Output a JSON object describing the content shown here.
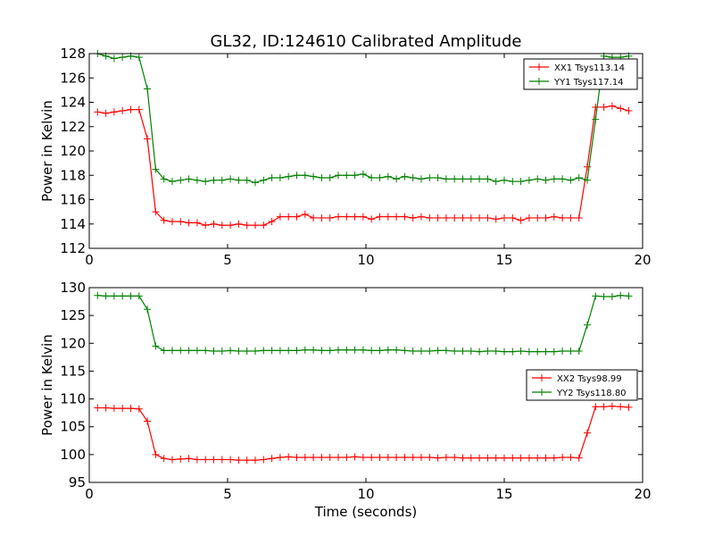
{
  "figure": {
    "title": "GL32, ID:124610 Calibrated Amplitude",
    "xlabel": "Time (seconds)"
  },
  "chart_data": [
    {
      "type": "line",
      "title": "GL32, ID:124610 Calibrated Amplitude",
      "xlabel": "",
      "ylabel": "Power in Kelvin",
      "xlim": [
        0,
        20
      ],
      "ylim": [
        112,
        128
      ],
      "xticks": [
        0,
        5,
        10,
        15,
        20
      ],
      "yticks": [
        112,
        114,
        116,
        118,
        120,
        122,
        124,
        126,
        128
      ],
      "grid": false,
      "legend_position": "top-right",
      "x": [
        0.3,
        0.6,
        0.9,
        1.2,
        1.5,
        1.8,
        2.1,
        2.4,
        2.7,
        3.0,
        3.3,
        3.6,
        3.9,
        4.2,
        4.5,
        4.8,
        5.1,
        5.4,
        5.7,
        6.0,
        6.3,
        6.6,
        6.9,
        7.2,
        7.5,
        7.8,
        8.1,
        8.4,
        8.7,
        9.0,
        9.3,
        9.6,
        9.9,
        10.2,
        10.5,
        10.8,
        11.1,
        11.4,
        11.7,
        12.0,
        12.3,
        12.6,
        12.9,
        13.2,
        13.5,
        13.8,
        14.1,
        14.4,
        14.7,
        15.0,
        15.3,
        15.6,
        15.9,
        16.2,
        16.5,
        16.8,
        17.1,
        17.4,
        17.7,
        18.0,
        18.3,
        18.6,
        18.9,
        19.2,
        19.5
      ],
      "series": [
        {
          "name": "XX1 Tsys113.14",
          "color": "#ff0000",
          "values": [
            123.2,
            123.1,
            123.2,
            123.3,
            123.4,
            123.4,
            121.0,
            115.0,
            114.3,
            114.2,
            114.2,
            114.1,
            114.1,
            113.9,
            114.0,
            113.9,
            113.9,
            114.0,
            113.9,
            113.9,
            113.9,
            114.2,
            114.6,
            114.6,
            114.6,
            114.8,
            114.5,
            114.5,
            114.5,
            114.6,
            114.6,
            114.6,
            114.6,
            114.4,
            114.6,
            114.6,
            114.6,
            114.6,
            114.5,
            114.6,
            114.5,
            114.5,
            114.5,
            114.5,
            114.5,
            114.5,
            114.5,
            114.5,
            114.4,
            114.5,
            114.5,
            114.3,
            114.5,
            114.5,
            114.5,
            114.6,
            114.5,
            114.5,
            114.5,
            118.7,
            123.6,
            123.6,
            123.7,
            123.5,
            123.3
          ]
        },
        {
          "name": "YY1 Tsys117.14",
          "color": "#008000",
          "values": [
            128.0,
            127.8,
            127.6,
            127.7,
            127.8,
            127.7,
            125.1,
            118.5,
            117.7,
            117.5,
            117.6,
            117.7,
            117.6,
            117.5,
            117.6,
            117.6,
            117.7,
            117.6,
            117.6,
            117.4,
            117.6,
            117.8,
            117.8,
            117.9,
            118.0,
            118.0,
            117.9,
            117.8,
            117.8,
            118.0,
            118.0,
            118.0,
            118.1,
            117.8,
            117.8,
            117.9,
            117.7,
            117.9,
            117.8,
            117.7,
            117.8,
            117.8,
            117.7,
            117.7,
            117.7,
            117.7,
            117.7,
            117.7,
            117.5,
            117.6,
            117.5,
            117.5,
            117.6,
            117.7,
            117.6,
            117.7,
            117.7,
            117.6,
            117.8,
            117.6,
            122.6,
            127.8,
            127.7,
            127.7,
            127.8
          ]
        }
      ]
    },
    {
      "type": "line",
      "title": "",
      "xlabel": "Time (seconds)",
      "ylabel": "Power in Kelvin",
      "xlim": [
        0,
        20
      ],
      "ylim": [
        95,
        130
      ],
      "xticks": [
        0,
        5,
        10,
        15,
        20
      ],
      "yticks": [
        95,
        100,
        105,
        110,
        115,
        120,
        125,
        130
      ],
      "grid": false,
      "legend_position": "center-right",
      "x": [
        0.3,
        0.6,
        0.9,
        1.2,
        1.5,
        1.8,
        2.1,
        2.4,
        2.7,
        3.0,
        3.3,
        3.6,
        3.9,
        4.2,
        4.5,
        4.8,
        5.1,
        5.4,
        5.7,
        6.0,
        6.3,
        6.6,
        6.9,
        7.2,
        7.5,
        7.8,
        8.1,
        8.4,
        8.7,
        9.0,
        9.3,
        9.6,
        9.9,
        10.2,
        10.5,
        10.8,
        11.1,
        11.4,
        11.7,
        12.0,
        12.3,
        12.6,
        12.9,
        13.2,
        13.5,
        13.8,
        14.1,
        14.4,
        14.7,
        15.0,
        15.3,
        15.6,
        15.9,
        16.2,
        16.5,
        16.8,
        17.1,
        17.4,
        17.7,
        18.0,
        18.3,
        18.6,
        18.9,
        19.2,
        19.5
      ],
      "series": [
        {
          "name": "XX2 Tsys98.99",
          "color": "#ff0000",
          "values": [
            108.4,
            108.4,
            108.3,
            108.3,
            108.3,
            108.2,
            106.0,
            100.0,
            99.3,
            99.1,
            99.2,
            99.3,
            99.1,
            99.1,
            99.1,
            99.1,
            99.1,
            99.0,
            99.0,
            99.0,
            99.1,
            99.3,
            99.5,
            99.6,
            99.5,
            99.5,
            99.5,
            99.5,
            99.5,
            99.5,
            99.5,
            99.6,
            99.5,
            99.5,
            99.5,
            99.5,
            99.5,
            99.5,
            99.5,
            99.5,
            99.5,
            99.4,
            99.5,
            99.5,
            99.4,
            99.4,
            99.4,
            99.4,
            99.4,
            99.4,
            99.4,
            99.4,
            99.4,
            99.4,
            99.4,
            99.4,
            99.5,
            99.5,
            99.4,
            103.9,
            108.6,
            108.6,
            108.7,
            108.6,
            108.5
          ]
        },
        {
          "name": "YY2 Tsys118.80",
          "color": "#008000",
          "values": [
            128.6,
            128.5,
            128.5,
            128.5,
            128.5,
            128.5,
            126.1,
            119.5,
            118.7,
            118.7,
            118.7,
            118.7,
            118.7,
            118.7,
            118.6,
            118.6,
            118.7,
            118.6,
            118.6,
            118.6,
            118.7,
            118.7,
            118.7,
            118.7,
            118.7,
            118.8,
            118.8,
            118.7,
            118.7,
            118.8,
            118.8,
            118.8,
            118.8,
            118.7,
            118.7,
            118.8,
            118.8,
            118.7,
            118.6,
            118.6,
            118.6,
            118.7,
            118.7,
            118.6,
            118.6,
            118.6,
            118.5,
            118.6,
            118.6,
            118.5,
            118.5,
            118.6,
            118.5,
            118.5,
            118.5,
            118.5,
            118.6,
            118.6,
            118.6,
            123.3,
            128.5,
            128.4,
            128.4,
            128.6,
            128.5
          ]
        }
      ]
    }
  ]
}
